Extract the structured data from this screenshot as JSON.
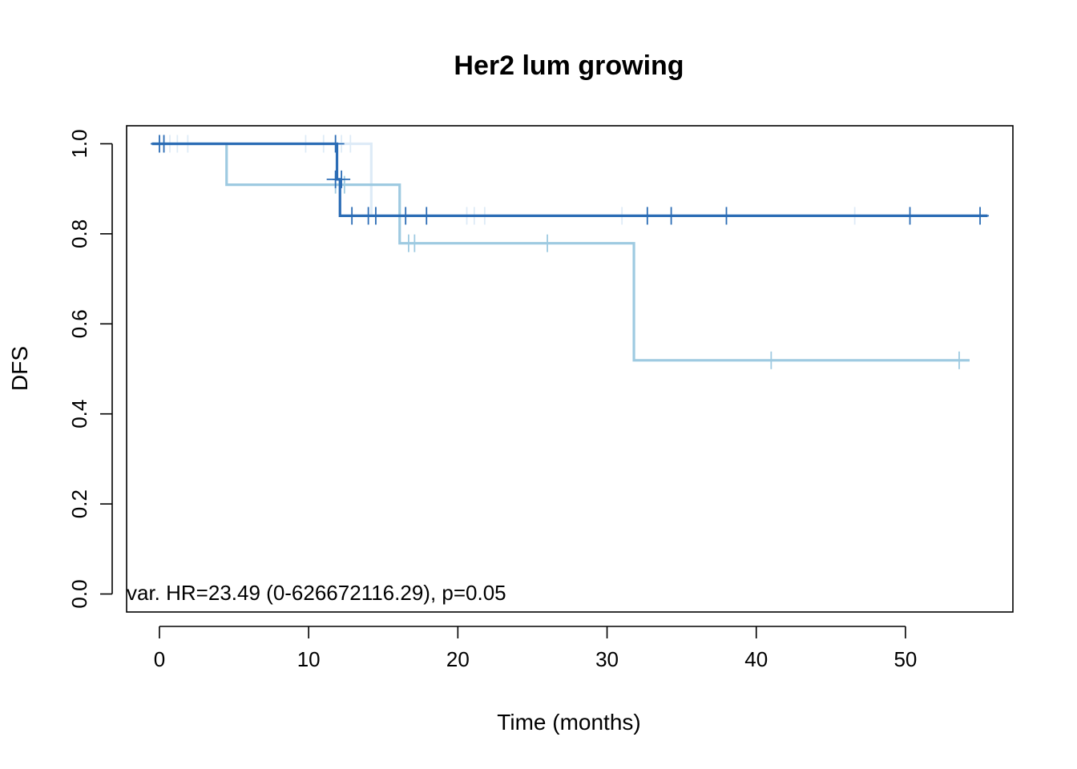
{
  "chart_data": {
    "type": "line",
    "subtype": "kaplan-meier-step",
    "title": "Her2 lum growing",
    "xlabel": "Time (months)",
    "ylabel": "DFS",
    "xlim": [
      -2.2,
      57.2
    ],
    "ylim": [
      -0.04,
      1.04
    ],
    "x_ticks": [
      0,
      10,
      20,
      30,
      40,
      50
    ],
    "x_tick_labels": [
      "0",
      "10",
      "20",
      "30",
      "40",
      "50"
    ],
    "y_ticks": [
      0.0,
      0.2,
      0.4,
      0.6,
      0.8,
      1.0
    ],
    "y_tick_labels": [
      "0.0",
      "0.2",
      "0.4",
      "0.6",
      "0.8",
      "1.0"
    ],
    "grid": false,
    "legend": "none",
    "annotation": "var. HR=23.49 (0-626672116.29), p=0.05",
    "series": [
      {
        "color": "#deebf7",
        "steps": [
          [
            -0.5,
            1.0
          ],
          [
            14.2,
            0.84
          ],
          [
            47.0,
            0.84
          ]
        ],
        "censor": [
          [
            0.3,
            1.0
          ],
          [
            0.7,
            1.0
          ],
          [
            1.2,
            1.0
          ],
          [
            1.9,
            1.0
          ],
          [
            9.8,
            1.0
          ],
          [
            11.0,
            1.0
          ],
          [
            12.2,
            1.0
          ],
          [
            12.8,
            1.0
          ],
          [
            20.6,
            0.84
          ],
          [
            21.1,
            0.84
          ],
          [
            21.8,
            0.84
          ],
          [
            31.0,
            0.84
          ],
          [
            46.6,
            0.84
          ]
        ]
      },
      {
        "color": "#9ecae1",
        "steps": [
          [
            -0.5,
            1.0
          ],
          [
            4.5,
            0.909
          ],
          [
            16.1,
            0.779
          ],
          [
            31.8,
            0.519
          ],
          [
            54.3,
            0.519
          ]
        ],
        "censor": [
          [
            11.8,
            0.909
          ],
          [
            12.4,
            0.909
          ],
          [
            16.7,
            0.779
          ],
          [
            17.1,
            0.779
          ],
          [
            26.0,
            0.779
          ],
          [
            41.0,
            0.519
          ],
          [
            53.6,
            0.519
          ]
        ]
      },
      {
        "color": "#2b6cb5",
        "steps": [
          [
            -0.5,
            1.0
          ],
          [
            11.9,
            0.921
          ],
          [
            12.1,
            0.84
          ],
          [
            55.5,
            0.84
          ]
        ],
        "censor": [
          [
            0.0,
            1.0
          ],
          [
            0.3,
            1.0
          ],
          [
            11.8,
            1.0
          ],
          [
            11.8,
            0.921
          ],
          [
            12.2,
            0.921
          ],
          [
            12.9,
            0.84
          ],
          [
            14.0,
            0.84
          ],
          [
            14.5,
            0.84
          ],
          [
            16.5,
            0.84
          ],
          [
            17.9,
            0.84
          ],
          [
            32.7,
            0.84
          ],
          [
            34.3,
            0.84
          ],
          [
            38.0,
            0.84
          ],
          [
            50.3,
            0.84
          ],
          [
            55.0,
            0.84
          ]
        ]
      }
    ]
  }
}
